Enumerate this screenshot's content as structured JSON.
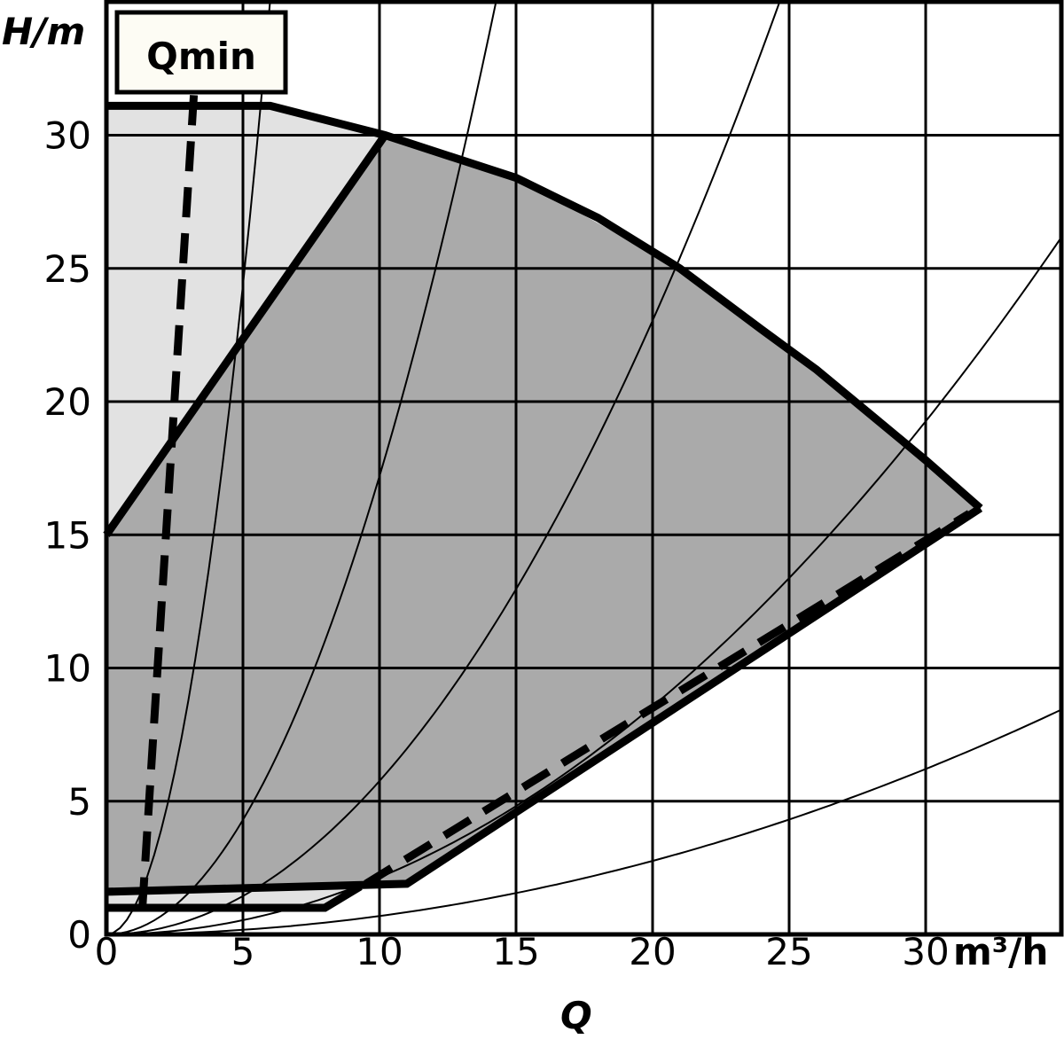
{
  "chart_data": {
    "type": "line",
    "xlabel": "Q",
    "x_unit": "m³/h",
    "ylabel": "H/m",
    "xlim": [
      0,
      35
    ],
    "ylim": [
      0,
      35
    ],
    "grid": true,
    "x_ticks": [
      "0",
      "5",
      "10",
      "15",
      "20",
      "25",
      "30"
    ],
    "y_ticks": [
      "0",
      "5",
      "10",
      "15",
      "20",
      "25",
      "30"
    ],
    "annotation": "Qmin",
    "colors": {
      "outer_region": "#e2e2e2",
      "main_region": "#aaaaaa",
      "label_box": "#fdfcf4",
      "line": "#000000"
    },
    "regions": {
      "outer_region": [
        [
          0,
          31.1
        ],
        [
          6,
          31.1
        ],
        [
          10.2,
          30
        ],
        [
          0,
          15
        ]
      ],
      "main_region": [
        [
          0,
          15
        ],
        [
          10.2,
          30
        ],
        [
          15,
          28.4
        ],
        [
          21,
          25
        ],
        [
          26,
          21.2
        ],
        [
          30,
          17.8
        ],
        [
          32,
          16
        ],
        [
          11,
          1.9
        ],
        [
          0,
          1.6
        ]
      ],
      "min_strip": [
        [
          0,
          1.6
        ],
        [
          11,
          1.9
        ],
        [
          9.3,
          1.8
        ],
        [
          8,
          1.0
        ],
        [
          0,
          1.0
        ]
      ]
    },
    "series": [
      {
        "role": "max-curve",
        "style": "thick",
        "points": [
          [
            0,
            31.1
          ],
          [
            6,
            31.1
          ],
          [
            10.2,
            30
          ],
          [
            15,
            28.4
          ],
          [
            18,
            26.9
          ],
          [
            21,
            25
          ],
          [
            24,
            22.7
          ],
          [
            26,
            21.2
          ],
          [
            28,
            19.5
          ],
          [
            30,
            17.8
          ],
          [
            32,
            16
          ]
        ]
      },
      {
        "role": "upper-constant-line",
        "style": "thick",
        "points": [
          [
            0,
            15
          ],
          [
            10.2,
            30
          ]
        ]
      },
      {
        "role": "lower-boundary",
        "style": "thick",
        "points": [
          [
            32,
            16
          ],
          [
            11,
            1.9
          ],
          [
            0,
            1.6
          ]
        ]
      },
      {
        "role": "min-curve",
        "style": "thick",
        "points": [
          [
            0,
            1.0
          ],
          [
            8,
            1.0
          ],
          [
            9.3,
            1.8
          ]
        ]
      },
      {
        "role": "qmin",
        "style": "dashed",
        "points": [
          [
            3.2,
            31.5
          ],
          [
            1.3,
            0.7
          ]
        ]
      },
      {
        "role": "lower-dashed",
        "style": "dashed",
        "points": [
          [
            9.5,
            1.9
          ],
          [
            31.6,
            15.8
          ]
        ]
      }
    ],
    "system_curves_k": [
      0.975,
      0.172,
      0.0576,
      0.0214,
      0.0069
    ]
  }
}
